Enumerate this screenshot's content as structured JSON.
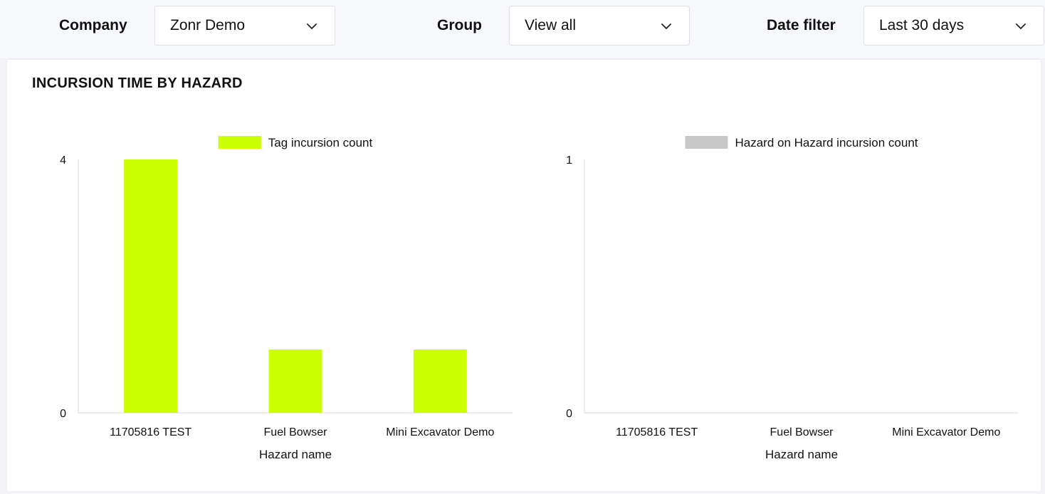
{
  "filters": {
    "company": {
      "label": "Company",
      "value": "Zonr Demo"
    },
    "group": {
      "label": "Group",
      "value": "View all"
    },
    "date": {
      "label": "Date filter",
      "value": "Last 30 days"
    }
  },
  "card": {
    "title": "INCURSION TIME BY HAZARD"
  },
  "chart_data": [
    {
      "type": "bar",
      "categories": [
        "11705816 TEST",
        "Fuel Bowser",
        "Mini Excavator Demo"
      ],
      "series": [
        {
          "name": "Tag incursion count",
          "values": [
            4,
            1,
            1
          ],
          "color": "#ccff00"
        }
      ],
      "xlabel": "Hazard name",
      "ylabel": "",
      "ylim": [
        0,
        4
      ],
      "yticks": [
        0,
        4
      ],
      "legend": "top"
    },
    {
      "type": "bar",
      "categories": [
        "11705816 TEST",
        "Fuel Bowser",
        "Mini Excavator Demo"
      ],
      "series": [
        {
          "name": "Hazard on Hazard incursion count",
          "values": [
            0,
            0,
            0
          ],
          "color": "#c8c8c8"
        }
      ],
      "xlabel": "Hazard name",
      "ylabel": "",
      "ylim": [
        0,
        1
      ],
      "yticks": [
        0,
        1
      ],
      "legend": "top"
    }
  ]
}
